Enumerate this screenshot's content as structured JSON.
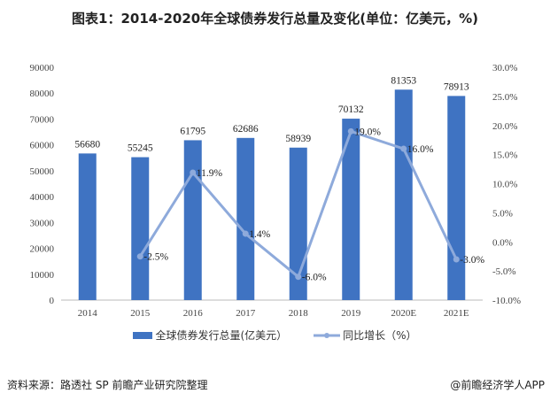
{
  "title": "图表1：2014-2020年全球债券发行总量及变化(单位：亿美元，%)",
  "source": "资料来源：路透社 SP 前瞻产业研究院整理",
  "brand": "@前瞻经济学人APP",
  "legend": {
    "bar": "全球债券发行总量(亿美元）",
    "line": "同比增长（%）"
  },
  "chart_data": {
    "type": "bar+line",
    "categories": [
      "2014",
      "2015",
      "2016",
      "2017",
      "2018",
      "2019",
      "2020E",
      "2021E"
    ],
    "series": [
      {
        "name": "全球债券发行总量(亿美元）",
        "type": "bar",
        "axis": "left",
        "color": "#3f73c2",
        "values": [
          56680,
          55245,
          61795,
          62686,
          58939,
          70132,
          81353,
          78913
        ],
        "labels": [
          "56680",
          "55245",
          "61795",
          "62686",
          "58939",
          "70132",
          "81353",
          "78913"
        ]
      },
      {
        "name": "同比增长（%）",
        "type": "line",
        "axis": "right",
        "color": "#8eaadb",
        "values": [
          null,
          -2.5,
          11.9,
          1.4,
          -6.0,
          19.0,
          16.0,
          -3.0
        ],
        "labels": [
          "",
          "-2.5%",
          "11.9%",
          "1.4%",
          "-6.0%",
          "19.0%",
          "16.0%",
          "-3.0%"
        ]
      }
    ],
    "left_axis": {
      "min": 0,
      "max": 90000,
      "ticks": [
        "0",
        "10000",
        "20000",
        "30000",
        "40000",
        "50000",
        "60000",
        "70000",
        "80000",
        "90000"
      ]
    },
    "right_axis": {
      "min": -10,
      "max": 30,
      "ticks": [
        "-10.0%",
        "-5.0%",
        "0.0%",
        "5.0%",
        "10.0%",
        "15.0%",
        "20.0%",
        "25.0%",
        "30.0%"
      ]
    },
    "grid": false,
    "legend_position": "bottom"
  }
}
